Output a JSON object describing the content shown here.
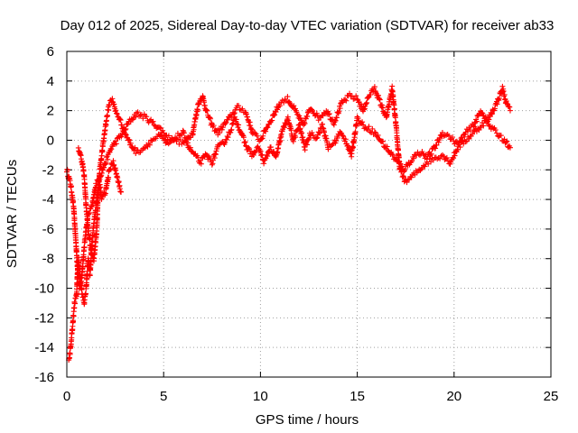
{
  "chart_data": {
    "type": "scatter",
    "title": "Day 012 of 2025, Sidereal Day-to-day VTEC variation (SDTVAR) for receiver ab33",
    "xlabel": "GPS time / hours",
    "ylabel": "SDTVAR / TECUs",
    "xlim": [
      0,
      25
    ],
    "ylim": [
      -16,
      6
    ],
    "xticks": [
      "0",
      "5",
      "10",
      "15",
      "20",
      "25"
    ],
    "yticks": [
      "6",
      "4",
      "2",
      "0",
      "-2",
      "-4",
      "-6",
      "-8",
      "-10",
      "-12",
      "-14",
      "-16"
    ],
    "grid": true,
    "marker": "+",
    "color": "#ff0000",
    "series": [
      {
        "name": "SDTVAR",
        "trace_a": [
          [
            0.0,
            -2.0
          ],
          [
            0.2,
            -3.0
          ],
          [
            0.35,
            -4.5
          ],
          [
            0.45,
            -6.5
          ],
          [
            0.55,
            -8.5
          ],
          [
            0.65,
            -10.0
          ],
          [
            0.75,
            -9.5
          ],
          [
            0.85,
            -8.0
          ],
          [
            0.95,
            -6.5
          ],
          [
            1.1,
            -5.0
          ],
          [
            1.3,
            -4.5
          ],
          [
            1.5,
            -3.0
          ],
          [
            1.7,
            -2.5
          ],
          [
            2.0,
            -1.5
          ],
          [
            2.3,
            -0.5
          ],
          [
            2.6,
            0.0
          ],
          [
            2.9,
            0.5
          ],
          [
            3.2,
            1.2
          ],
          [
            3.6,
            1.8
          ],
          [
            4.0,
            1.6
          ],
          [
            4.4,
            1.2
          ],
          [
            4.8,
            0.8
          ],
          [
            5.2,
            0.2
          ],
          [
            5.6,
            0.0
          ],
          [
            6.0,
            -0.2
          ],
          [
            6.5,
            0.5
          ],
          [
            6.8,
            2.5
          ],
          [
            7.0,
            3.0
          ],
          [
            7.2,
            2.0
          ],
          [
            7.5,
            1.0
          ],
          [
            7.8,
            0.5
          ],
          [
            8.1,
            1.0
          ],
          [
            8.4,
            1.5
          ],
          [
            8.8,
            2.2
          ],
          [
            9.2,
            2.0
          ],
          [
            9.6,
            0.5
          ],
          [
            10.0,
            0.0
          ],
          [
            10.3,
            0.8
          ],
          [
            10.6,
            1.5
          ],
          [
            11.0,
            2.5
          ],
          [
            11.4,
            2.8
          ],
          [
            11.8,
            2.0
          ],
          [
            12.2,
            1.0
          ],
          [
            12.6,
            2.2
          ],
          [
            13.0,
            1.5
          ],
          [
            13.4,
            2.0
          ],
          [
            13.8,
            1.2
          ],
          [
            14.2,
            2.5
          ],
          [
            14.6,
            3.0
          ],
          [
            15.0,
            2.8
          ],
          [
            15.3,
            2.0
          ],
          [
            15.6,
            3.0
          ],
          [
            15.9,
            3.5
          ],
          [
            16.2,
            2.5
          ],
          [
            16.5,
            1.5
          ],
          [
            16.8,
            3.5
          ],
          [
            17.0,
            1.0
          ],
          [
            17.2,
            -2.0
          ],
          [
            17.5,
            -2.8
          ],
          [
            17.8,
            -2.5
          ],
          [
            18.2,
            -2.0
          ],
          [
            18.6,
            -1.5
          ],
          [
            19.0,
            -1.2
          ],
          [
            19.4,
            -1.0
          ],
          [
            19.8,
            -1.5
          ],
          [
            20.2,
            -0.5
          ],
          [
            20.6,
            0.0
          ],
          [
            21.0,
            0.5
          ],
          [
            21.4,
            1.0
          ],
          [
            21.8,
            1.5
          ],
          [
            22.2,
            2.5
          ],
          [
            22.5,
            3.5
          ],
          [
            22.7,
            2.5
          ],
          [
            22.9,
            2.0
          ]
        ],
        "trace_b": [
          [
            0.6,
            -0.5
          ],
          [
            0.8,
            -1.5
          ],
          [
            0.9,
            -2.5
          ],
          [
            1.0,
            -4.5
          ],
          [
            1.1,
            -6.0
          ],
          [
            1.25,
            -7.5
          ],
          [
            1.4,
            -8.0
          ],
          [
            1.55,
            -6.0
          ],
          [
            1.6,
            -4.0
          ],
          [
            1.7,
            -2.0
          ],
          [
            1.8,
            -1.0
          ],
          [
            1.9,
            0.0
          ],
          [
            2.0,
            1.0
          ],
          [
            2.1,
            1.8
          ],
          [
            2.2,
            2.5
          ],
          [
            2.35,
            2.8
          ],
          [
            2.5,
            2.0
          ],
          [
            2.7,
            1.5
          ],
          [
            3.0,
            0.5
          ],
          [
            3.3,
            -0.3
          ],
          [
            3.6,
            -0.8
          ],
          [
            4.0,
            -0.5
          ],
          [
            4.4,
            0.0
          ],
          [
            4.8,
            0.3
          ],
          [
            5.2,
            -0.3
          ],
          [
            5.6,
            0.2
          ],
          [
            6.0,
            0.5
          ],
          [
            6.3,
            -0.5
          ],
          [
            6.6,
            -1.0
          ],
          [
            6.9,
            -1.5
          ],
          [
            7.2,
            -1.0
          ],
          [
            7.5,
            -1.5
          ],
          [
            7.8,
            -0.5
          ],
          [
            8.1,
            -0.2
          ],
          [
            8.4,
            0.5
          ],
          [
            8.7,
            1.5
          ],
          [
            9.0,
            0.5
          ],
          [
            9.3,
            -0.5
          ],
          [
            9.6,
            -1.0
          ],
          [
            9.9,
            -0.5
          ],
          [
            10.2,
            -1.5
          ],
          [
            10.5,
            -0.5
          ],
          [
            10.8,
            -1.2
          ],
          [
            11.1,
            0.5
          ],
          [
            11.4,
            1.5
          ],
          [
            11.7,
            0.0
          ],
          [
            12.0,
            1.0
          ],
          [
            12.3,
            -0.5
          ],
          [
            12.6,
            0.5
          ],
          [
            12.9,
            0.2
          ],
          [
            13.2,
            1.0
          ],
          [
            13.5,
            -0.5
          ],
          [
            13.8,
            -0.2
          ],
          [
            14.1,
            0.5
          ],
          [
            14.4,
            0.0
          ],
          [
            14.7,
            -1.0
          ],
          [
            15.0,
            1.5
          ],
          [
            15.3,
            1.0
          ],
          [
            15.6,
            0.8
          ],
          [
            15.9,
            0.5
          ],
          [
            16.2,
            0.0
          ],
          [
            16.5,
            -0.5
          ],
          [
            16.8,
            -1.0
          ],
          [
            17.1,
            -1.5
          ],
          [
            17.4,
            -2.0
          ],
          [
            17.7,
            -1.5
          ],
          [
            18.0,
            -1.0
          ],
          [
            18.3,
            -0.8
          ],
          [
            18.6,
            -1.2
          ],
          [
            19.0,
            -0.5
          ],
          [
            19.4,
            0.5
          ],
          [
            19.8,
            0.2
          ],
          [
            20.2,
            -0.3
          ],
          [
            20.6,
            0.5
          ],
          [
            21.0,
            1.0
          ],
          [
            21.4,
            2.0
          ],
          [
            21.8,
            1.0
          ],
          [
            22.2,
            0.5
          ],
          [
            22.6,
            0.0
          ],
          [
            22.9,
            -0.5
          ]
        ],
        "trace_c": [
          [
            0.1,
            -15.0
          ],
          [
            0.2,
            -14.0
          ],
          [
            0.3,
            -12.5
          ],
          [
            0.4,
            -11.0
          ],
          [
            0.5,
            -10.5
          ],
          [
            0.55,
            -9.0
          ],
          [
            0.6,
            -8.0
          ],
          [
            0.7,
            -9.5
          ],
          [
            0.8,
            -10.5
          ],
          [
            0.9,
            -11.0
          ],
          [
            1.0,
            -10.0
          ],
          [
            1.05,
            -9.0
          ],
          [
            1.1,
            -8.0
          ],
          [
            1.2,
            -9.0
          ],
          [
            1.3,
            -7.0
          ],
          [
            1.4,
            -5.5
          ],
          [
            1.5,
            -4.5
          ],
          [
            1.6,
            -3.5
          ],
          [
            1.7,
            -3.0
          ],
          [
            1.8,
            -4.0
          ],
          [
            2.0,
            -3.5
          ],
          [
            2.2,
            -2.0
          ],
          [
            2.4,
            -1.5
          ],
          [
            2.6,
            -2.5
          ],
          [
            2.8,
            -3.5
          ]
        ]
      }
    ]
  }
}
